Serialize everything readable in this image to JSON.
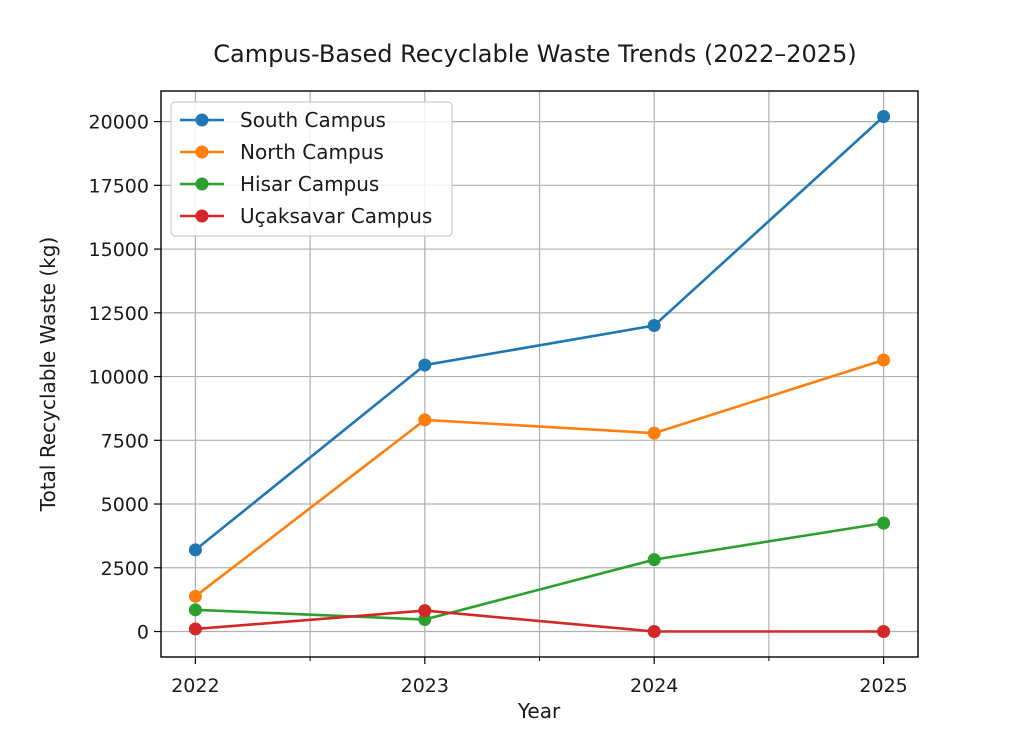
{
  "chart_data": {
    "type": "line",
    "title": "Campus-Based Recyclable Waste Trends (2022–2025)",
    "xlabel": "Year",
    "ylabel": "Total Recyclable Waste (kg)",
    "x": [
      2022,
      2023,
      2024,
      2025
    ],
    "x_tick_labels": [
      "2022",
      "2023",
      "2024",
      "2025"
    ],
    "x_minor_ticks": [
      2022.5,
      2023.5,
      2024.5
    ],
    "xlim": [
      2021.85,
      2025.15
    ],
    "ylim": [
      -1000,
      21200
    ],
    "y_ticks": [
      0,
      2500,
      5000,
      7500,
      10000,
      12500,
      15000,
      17500,
      20000
    ],
    "y_tick_labels": [
      "0",
      "2500",
      "5000",
      "7500",
      "10000",
      "12500",
      "15000",
      "17500",
      "20000"
    ],
    "grid": true,
    "legend_position": "top-left",
    "series": [
      {
        "name": "South Campus",
        "color": "#1f77b4",
        "marker": "circle",
        "values": [
          3200,
          10450,
          12000,
          20200
        ]
      },
      {
        "name": "North Campus",
        "color": "#ff7f0e",
        "marker": "circle",
        "values": [
          1380,
          8300,
          7780,
          10650
        ]
      },
      {
        "name": "Hisar Campus",
        "color": "#2ca02c",
        "marker": "circle",
        "values": [
          850,
          470,
          2820,
          4250
        ]
      },
      {
        "name": "Uçaksavar Campus",
        "color": "#d62728",
        "marker": "circle",
        "values": [
          100,
          820,
          0,
          0
        ]
      }
    ]
  }
}
